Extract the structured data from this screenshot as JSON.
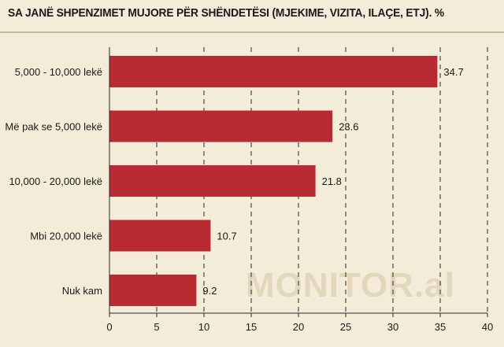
{
  "title": "SA JANË SHPENZIMET MUJORE PËR SHËNDETËSI (MJEKIME, VIZITA, ILAÇE, ETJ). %",
  "watermark": "MONITOR.al",
  "colors": {
    "bar": "#b92a33",
    "background": "#f3ecd9",
    "grid": "#2a2a2a"
  },
  "chart_data": {
    "type": "bar",
    "orientation": "horizontal",
    "categories": [
      "5,000 - 10,000 lekë",
      "Më pak se 5,000 lekë",
      "10,000 - 20,000 lekë",
      "Mbi 20,000 lekë",
      "Nuk kam"
    ],
    "values": [
      34.7,
      23.6,
      21.8,
      10.7,
      9.2
    ],
    "value_labels": [
      "34.7",
      "23.6",
      "21.8",
      "10.7",
      "9.2"
    ],
    "xlim": [
      0,
      40
    ],
    "xticks": [
      0,
      5,
      10,
      15,
      20,
      25,
      30,
      35,
      40
    ],
    "grid": "vertical dashed"
  }
}
